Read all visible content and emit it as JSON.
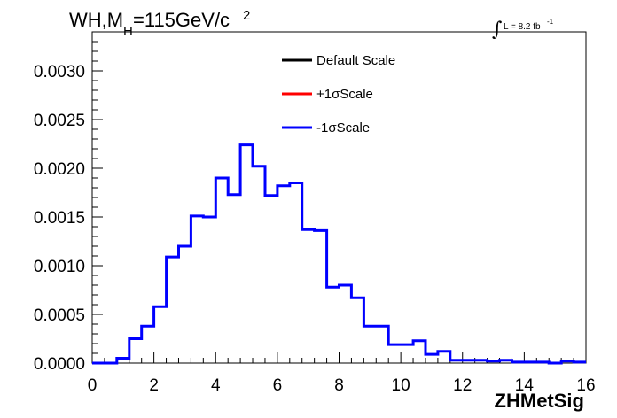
{
  "chart_data": {
    "type": "line",
    "title_main": "WH,M",
    "title_sub": "H",
    "title_rest": "=115GeV/c",
    "title_sup": "2",
    "lumi": {
      "integral": "∫",
      "text": "L = 8.2 fb",
      "sup": "-1"
    },
    "xlabel": "ZHMetSig",
    "ylabel": "",
    "xlim": [
      0,
      16
    ],
    "ylim": [
      0,
      0.0034
    ],
    "x_ticks": [
      "0",
      "2",
      "4",
      "6",
      "8",
      "10",
      "12",
      "14",
      "16"
    ],
    "y_ticks": [
      "0.0000",
      "0.0005",
      "0.0010",
      "0.0015",
      "0.0020",
      "0.0025",
      "0.0030"
    ],
    "bin_width": 0.4,
    "bin_start": 0,
    "legend": [
      {
        "label": "Default Scale",
        "color": "#000000"
      },
      {
        "label": "+1σScale",
        "color": "#ff0000"
      },
      {
        "label": "-1σScale",
        "color": "#0000ff"
      }
    ],
    "series": [
      {
        "name": "-1σScale",
        "color": "#0000ff",
        "values": [
          0.0,
          0.0,
          5e-05,
          0.00025,
          0.00038,
          0.00058,
          0.00109,
          0.0012,
          0.00151,
          0.0015,
          0.0019,
          0.00173,
          0.00224,
          0.00202,
          0.00172,
          0.00182,
          0.00185,
          0.00137,
          0.00136,
          0.00078,
          0.0008,
          0.00067,
          0.00038,
          0.00038,
          0.00019,
          0.00019,
          0.00023,
          9e-05,
          0.00012,
          3e-05,
          3e-05,
          3e-05,
          2e-05,
          3e-05,
          1e-05,
          1e-05,
          1e-05,
          0.0,
          2e-05,
          1e-05
        ]
      }
    ]
  }
}
